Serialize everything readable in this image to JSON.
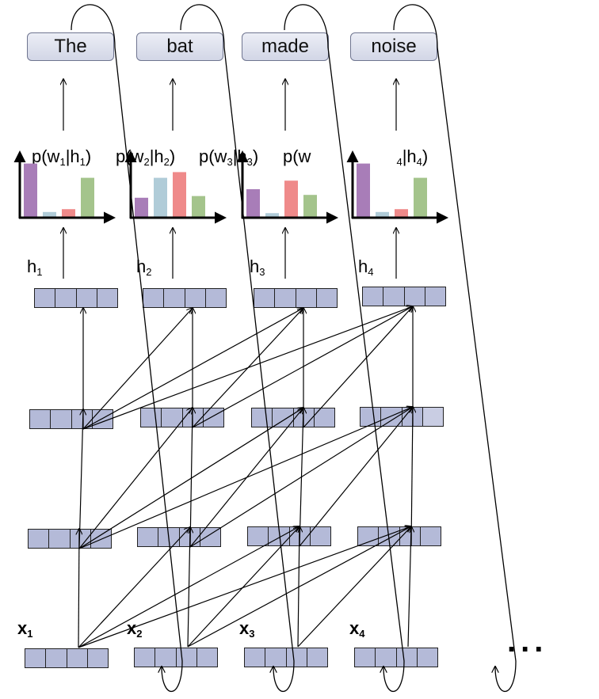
{
  "words": [
    "The",
    "bat",
    "made",
    "noise"
  ],
  "hidden_labels": [
    {
      "sym": "h",
      "sub": "1"
    },
    {
      "sym": "h",
      "sub": "2"
    },
    {
      "sym": "h",
      "sub": "3"
    },
    {
      "sym": "h",
      "sub": "4"
    }
  ],
  "input_labels": [
    {
      "sym": "x",
      "sub": "1"
    },
    {
      "sym": "x",
      "sub": "2"
    },
    {
      "sym": "x",
      "sub": "3"
    },
    {
      "sym": "x",
      "sub": "4"
    }
  ],
  "prob_labels": [
    {
      "pre": "p(w",
      "sub1": "1",
      "mid": "|h",
      "sub2": "1",
      "post": ")"
    },
    {
      "pre": "p(w",
      "sub1": "2",
      "mid": "|h",
      "sub2": "2",
      "post": ")"
    },
    {
      "pre": "p(w",
      "sub1": "3",
      "mid": "|h",
      "sub2": "3",
      "post": ")"
    },
    {
      "pre": "p(w",
      "sub1": "4",
      "mid": "|h",
      "sub2": "4",
      "post": ")"
    }
  ],
  "ellipsis": "...",
  "chart_data": [
    {
      "type": "bar",
      "values": [
        0.95,
        0.1,
        0.15,
        0.7
      ]
    },
    {
      "type": "bar",
      "values": [
        0.35,
        0.7,
        0.8,
        0.38
      ]
    },
    {
      "type": "bar",
      "values": [
        0.5,
        0.08,
        0.65,
        0.4
      ]
    },
    {
      "type": "bar",
      "values": [
        0.95,
        0.1,
        0.15,
        0.7
      ]
    }
  ],
  "colors": {
    "bars": [
      "#a87db8",
      "#b0ccd8",
      "#ef8a8a",
      "#a4c48c"
    ],
    "cell": "#b4bad8",
    "word_box": "#dde0ee"
  }
}
